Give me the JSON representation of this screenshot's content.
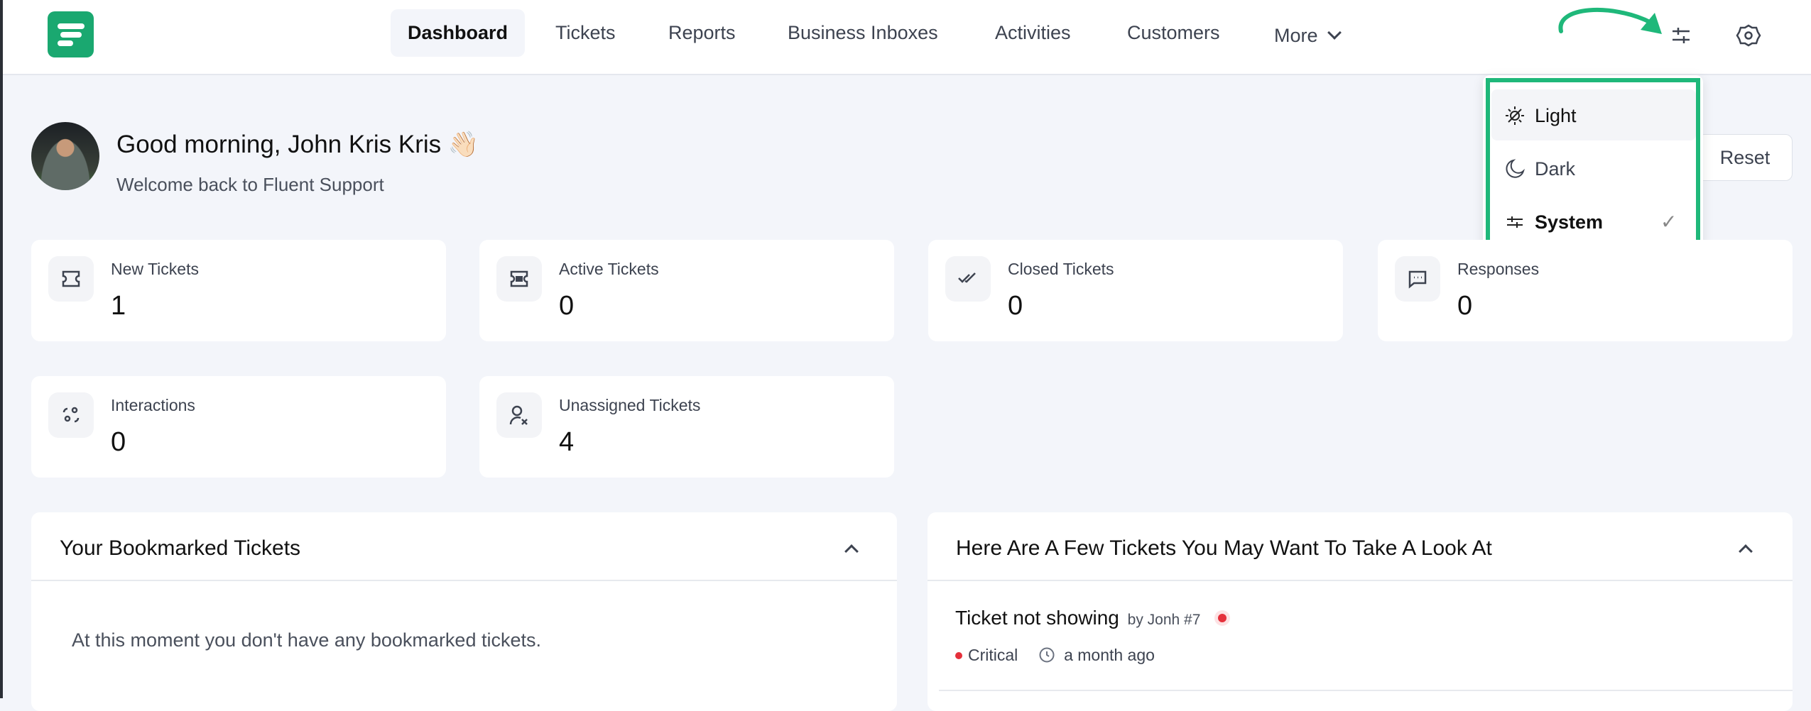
{
  "nav": {
    "items": [
      "Dashboard",
      "Tickets",
      "Reports",
      "Business Inboxes",
      "Activities",
      "Customers"
    ],
    "more": "More"
  },
  "greeting": {
    "title": "Good morning, John Kris Kris",
    "emoji": "👋🏻",
    "subtitle": "Welcome back to Fluent Support"
  },
  "reset_label": "Reset",
  "theme_menu": {
    "items": [
      {
        "label": "Light",
        "icon": "sun-icon"
      },
      {
        "label": "Dark",
        "icon": "moon-icon"
      },
      {
        "label": "System",
        "icon": "sliders-icon",
        "selected": true
      }
    ],
    "check": "✓"
  },
  "stats": [
    {
      "label": "New Tickets",
      "value": "1"
    },
    {
      "label": "Active Tickets",
      "value": "0"
    },
    {
      "label": "Closed Tickets",
      "value": "0"
    },
    {
      "label": "Responses",
      "value": "0"
    },
    {
      "label": "Interactions",
      "value": "0"
    },
    {
      "label": "Unassigned Tickets",
      "value": "4"
    }
  ],
  "bookmarks": {
    "title": "Your Bookmarked Tickets",
    "empty": "At this moment you don't have any bookmarked tickets."
  },
  "suggested": {
    "title": "Here Are A Few Tickets You May Want To Take A Look At",
    "tickets": [
      {
        "title": "Ticket not showing",
        "by": "by Jonh #7",
        "priority": "Critical",
        "time": "a month ago"
      }
    ]
  },
  "colors": {
    "brand": "#1aa870",
    "highlight": "#1fb87a",
    "critical": "#e5303b"
  }
}
